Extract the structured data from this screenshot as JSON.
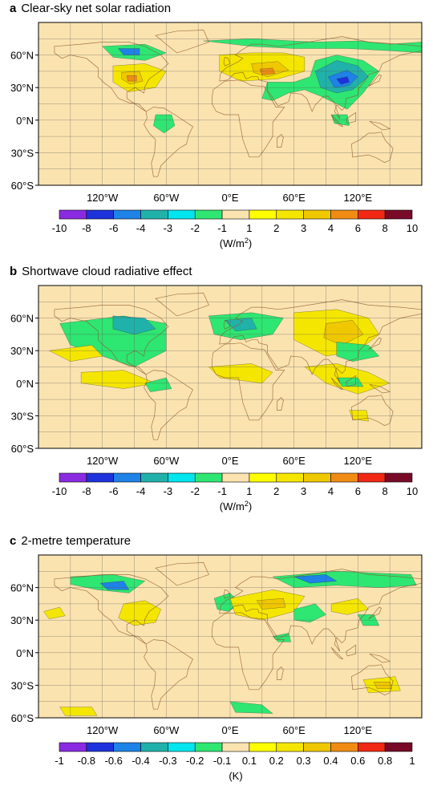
{
  "panels": [
    {
      "letter": "a",
      "title": "Clear-sky net solar radiation",
      "unit": "W/m",
      "unit_sup": "2",
      "lat_ticks": [
        "60°N",
        "30°N",
        "0°N",
        "30°S",
        "60°S"
      ],
      "lon_ticks": [
        "120°W",
        "60°W",
        "0°E",
        "60°E",
        "120°E"
      ],
      "colorbar_ticks": [
        "-10",
        "-8",
        "-6",
        "-4",
        "-3",
        "-2",
        "-1",
        "1",
        "2",
        "3",
        "4",
        "6",
        "8",
        "10"
      ]
    },
    {
      "letter": "b",
      "title": "Shortwave cloud radiative effect",
      "unit": "W/m",
      "unit_sup": "2",
      "lat_ticks": [
        "60°N",
        "30°N",
        "0°N",
        "30°S",
        "60°S"
      ],
      "lon_ticks": [
        "120°W",
        "60°W",
        "0°E",
        "60°E",
        "120°E"
      ],
      "colorbar_ticks": [
        "-10",
        "-8",
        "-6",
        "-4",
        "-3",
        "-2",
        "-1",
        "1",
        "2",
        "3",
        "4",
        "6",
        "8",
        "10"
      ]
    },
    {
      "letter": "c",
      "title": "2-metre temperature",
      "unit": "K",
      "unit_sup": "",
      "lat_ticks": [
        "60°N",
        "30°N",
        "0°N",
        "30°S",
        "60°S"
      ],
      "lon_ticks": [
        "120°W",
        "60°W",
        "0°E",
        "60°E",
        "120°E"
      ],
      "colorbar_ticks": [
        "-1",
        "-0.8",
        "-0.6",
        "-0.4",
        "-0.3",
        "-0.2",
        "-0.1",
        "0.1",
        "0.2",
        "0.3",
        "0.4",
        "0.6",
        "0.8",
        "1"
      ]
    }
  ],
  "colorbar_colors": [
    "#8a2be2",
    "#1e32dc",
    "#1e82e6",
    "#20b2aa",
    "#00e5ee",
    "#2ee672",
    "#fbe3b0",
    "#ffff00",
    "#f5e600",
    "#f0c800",
    "#f08c14",
    "#f02814",
    "#780a28"
  ],
  "chart_data": [
    {
      "type": "heatmap",
      "title": "Clear-sky net solar radiation",
      "colorbar_label": "(W/m2)",
      "colorbar_levels": [
        -10,
        -8,
        -6,
        -4,
        -3,
        -2,
        -1,
        1,
        2,
        3,
        4,
        6,
        8,
        10
      ],
      "x_ticks": [
        "120°W",
        "60°W",
        "0°E",
        "60°E",
        "120°E"
      ],
      "y_ticks": [
        "60°N",
        "30°N",
        "0°N",
        "30°S",
        "60°S"
      ],
      "grid": true
    },
    {
      "type": "heatmap",
      "title": "Shortwave cloud radiative effect",
      "colorbar_label": "(W/m2)",
      "colorbar_levels": [
        -10,
        -8,
        -6,
        -4,
        -3,
        -2,
        -1,
        1,
        2,
        3,
        4,
        6,
        8,
        10
      ],
      "x_ticks": [
        "120°W",
        "60°W",
        "0°E",
        "60°E",
        "120°E"
      ],
      "y_ticks": [
        "60°N",
        "30°N",
        "0°N",
        "30°S",
        "60°S"
      ],
      "grid": true
    },
    {
      "type": "heatmap",
      "title": "2-metre temperature",
      "colorbar_label": "(K)",
      "colorbar_levels": [
        -1,
        -0.8,
        -0.6,
        -0.4,
        -0.3,
        -0.2,
        -0.1,
        0.1,
        0.2,
        0.3,
        0.4,
        0.6,
        0.8,
        1
      ],
      "x_ticks": [
        "120°W",
        "60°W",
        "0°E",
        "60°E",
        "120°E"
      ],
      "y_ticks": [
        "60°N",
        "30°N",
        "0°N",
        "30°S",
        "60°S"
      ],
      "grid": true
    }
  ]
}
